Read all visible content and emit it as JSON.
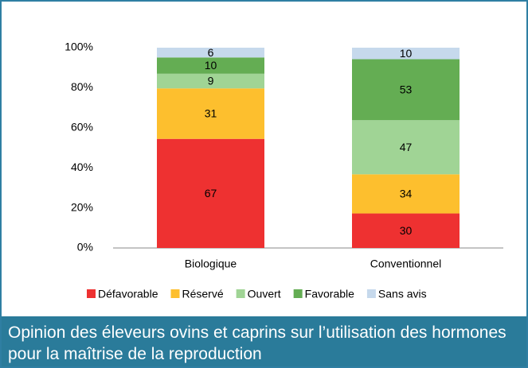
{
  "chart_data": {
    "type": "bar",
    "stacking": "percent",
    "title": "Opinion des éleveurs ovins et caprins sur l’utilisation des hormones pour la maîtrise de la reproduction",
    "categories": [
      "Biologique",
      "Conventionnel"
    ],
    "series": [
      {
        "name": "Défavorable",
        "color": "#ee3131",
        "values": [
          67,
          30
        ]
      },
      {
        "name": "Réservé",
        "color": "#fdbf2e",
        "values": [
          31,
          34
        ]
      },
      {
        "name": "Ouvert",
        "color": "#a0d495",
        "values": [
          9,
          47
        ]
      },
      {
        "name": "Favorable",
        "color": "#64ad53",
        "values": [
          10,
          53
        ]
      },
      {
        "name": "Sans avis",
        "color": "#c6d9ec",
        "values": [
          6,
          10
        ]
      }
    ],
    "ylim": [
      0,
      100
    ],
    "yticks": [
      {
        "value": 0,
        "label": "0%"
      },
      {
        "value": 20,
        "label": "20%"
      },
      {
        "value": 40,
        "label": "40%"
      },
      {
        "value": 60,
        "label": "60%"
      },
      {
        "value": 80,
        "label": "80%"
      },
      {
        "value": 100,
        "label": "100%"
      }
    ],
    "legend": "bottom"
  }
}
